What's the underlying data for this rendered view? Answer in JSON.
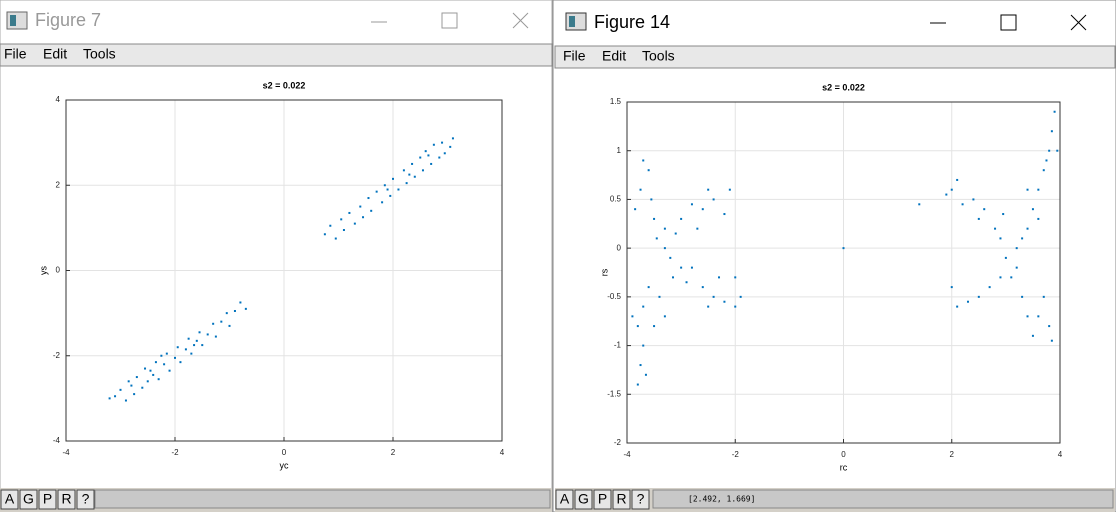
{
  "windows": [
    {
      "title": "Figure 7",
      "menu": [
        "File",
        "Edit",
        "Tools"
      ],
      "buttons": [
        "A",
        "G",
        "P",
        "R",
        "?"
      ]
    },
    {
      "title": "Figure 14",
      "menu": [
        "File",
        "Edit",
        "Tools"
      ],
      "buttons": [
        "A",
        "G",
        "P",
        "R",
        "?"
      ],
      "status": "[2.492, 1.669]"
    }
  ],
  "chart_data": [
    {
      "type": "scatter",
      "title": "s2 = 0.022",
      "xlabel": "yc",
      "ylabel": "ys",
      "color": "#0072bd",
      "grid": true,
      "xlim": [
        -4,
        4
      ],
      "ylim": [
        -4,
        4
      ],
      "xticks": [
        -4,
        -2,
        0,
        2,
        4
      ],
      "yticks": [
        -4,
        -2,
        0,
        2,
        4
      ],
      "x": [
        -3.1,
        -3.0,
        -2.9,
        -2.85,
        -2.75,
        -2.7,
        -2.6,
        -2.55,
        -2.5,
        -2.4,
        -2.35,
        -2.3,
        -2.2,
        -2.15,
        -2.1,
        -2.0,
        -1.95,
        -1.9,
        -1.8,
        -1.75,
        -1.7,
        -1.6,
        -1.55,
        -1.5,
        -1.4,
        -1.3,
        -1.25,
        -1.15,
        -1.05,
        -1.0,
        -0.9,
        -0.8,
        -0.7,
        -2.45,
        -2.25,
        -1.65,
        -2.8,
        -3.2,
        0.75,
        0.85,
        0.95,
        1.05,
        1.1,
        1.2,
        1.3,
        1.4,
        1.45,
        1.55,
        1.6,
        1.7,
        1.8,
        1.85,
        1.95,
        2.0,
        2.1,
        2.2,
        2.25,
        2.35,
        2.4,
        2.5,
        2.55,
        2.6,
        2.7,
        2.75,
        2.85,
        2.9,
        2.95,
        3.05,
        3.1,
        2.3,
        1.9,
        2.65
      ],
      "y": [
        -2.95,
        -2.8,
        -3.05,
        -2.6,
        -2.9,
        -2.5,
        -2.75,
        -2.3,
        -2.6,
        -2.45,
        -2.15,
        -2.55,
        -2.2,
        -1.95,
        -2.35,
        -2.05,
        -1.8,
        -2.15,
        -1.85,
        -1.6,
        -1.95,
        -1.65,
        -1.45,
        -1.75,
        -1.5,
        -1.25,
        -1.55,
        -1.2,
        -1.0,
        -1.3,
        -0.95,
        -0.75,
        -0.9,
        -2.35,
        -2.0,
        -1.75,
        -2.7,
        -3.0,
        0.85,
        1.05,
        0.75,
        1.2,
        0.95,
        1.35,
        1.1,
        1.5,
        1.25,
        1.7,
        1.4,
        1.85,
        1.6,
        2.0,
        1.75,
        2.15,
        1.9,
        2.35,
        2.05,
        2.5,
        2.2,
        2.65,
        2.35,
        2.8,
        2.5,
        2.95,
        2.65,
        3.0,
        2.75,
        2.9,
        3.1,
        2.25,
        1.9,
        2.7
      ]
    },
    {
      "type": "scatter",
      "title": "s2 = 0.022",
      "xlabel": "rc",
      "ylabel": "rs",
      "color": "#0072bd",
      "grid": true,
      "xlim": [
        -4,
        4
      ],
      "ylim": [
        -2,
        1.5
      ],
      "xticks": [
        -4,
        -2,
        0,
        2,
        4
      ],
      "yticks": [
        -2,
        -1.5,
        -1,
        -0.5,
        0,
        0.5,
        1,
        1.5
      ],
      "x": [
        -3.8,
        -3.75,
        -3.7,
        -3.65,
        -3.8,
        -3.7,
        -3.9,
        -3.6,
        -3.75,
        -3.6,
        -3.55,
        -3.7,
        -3.5,
        -3.45,
        -3.3,
        -3.2,
        -3.3,
        -3.1,
        -3.0,
        -3.15,
        -2.9,
        -2.8,
        -2.6,
        -2.4,
        -2.2,
        -2.3,
        -2.0,
        -2.5,
        -2.7,
        -2.6,
        -2.4,
        -2.2,
        -2.5,
        -2.1,
        -3.4,
        -3.5,
        -3.3,
        -3.85,
        -2.0,
        -1.9,
        -3.0,
        -2.8,
        3.9,
        3.85,
        3.8,
        3.7,
        3.6,
        3.75,
        3.5,
        3.4,
        3.3,
        3.2,
        3.0,
        2.9,
        2.8,
        2.6,
        2.4,
        2.2,
        2.0,
        1.9,
        2.1,
        2.5,
        2.9,
        2.7,
        2.5,
        2.3,
        2.1,
        2.0,
        3.1,
        3.3,
        3.4,
        3.5,
        3.6,
        3.8,
        3.85,
        3.7,
        3.4,
        3.6,
        1.4,
        3.95,
        3.2,
        2.95,
        0
      ],
      "y": [
        -1.4,
        -1.2,
        -1.0,
        -1.3,
        -0.8,
        -0.6,
        -0.7,
        -0.4,
        0.6,
        0.8,
        0.5,
        0.9,
        0.3,
        0.1,
        0.0,
        -0.1,
        0.2,
        0.15,
        -0.2,
        -0.3,
        -0.35,
        -0.2,
        -0.4,
        -0.5,
        -0.55,
        -0.3,
        -0.6,
        -0.6,
        0.2,
        0.4,
        0.5,
        0.35,
        0.6,
        0.6,
        -0.5,
        -0.8,
        -0.7,
        0.4,
        -0.3,
        -0.5,
        0.3,
        0.45,
        1.4,
        1.2,
        1.0,
        0.8,
        0.6,
        0.9,
        0.4,
        0.2,
        0.1,
        0.0,
        -0.1,
        0.1,
        0.2,
        0.4,
        0.5,
        0.45,
        0.6,
        0.55,
        0.7,
        0.3,
        -0.3,
        -0.4,
        -0.5,
        -0.55,
        -0.6,
        -0.4,
        -0.3,
        -0.5,
        -0.7,
        -0.9,
        -0.7,
        -0.8,
        -0.95,
        -0.5,
        0.6,
        0.3,
        0.45,
        1.0,
        -0.2,
        0.35,
        0
      ]
    }
  ]
}
